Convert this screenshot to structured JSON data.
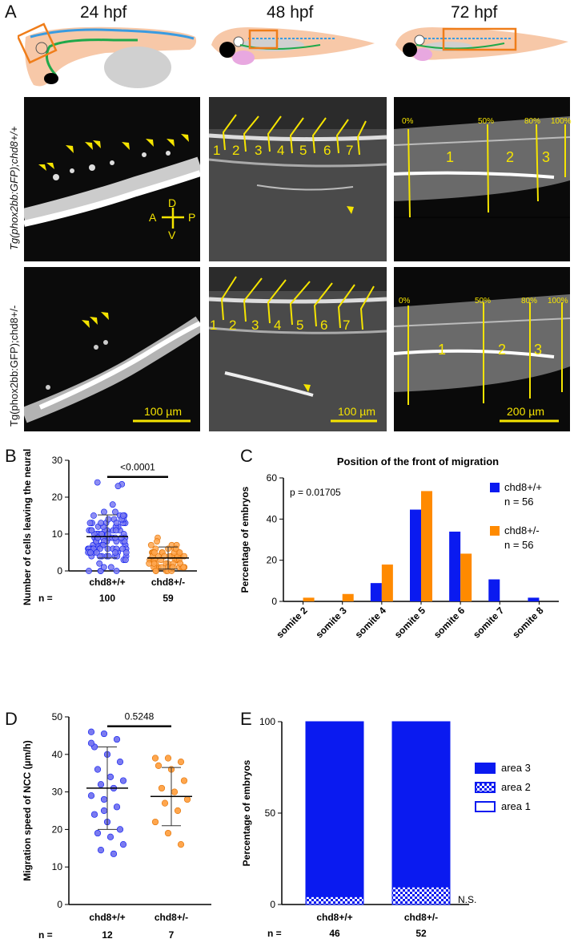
{
  "panel_letters": {
    "A": "A",
    "B": "B",
    "C": "C",
    "D": "D",
    "E": "E"
  },
  "panelA": {
    "stages": [
      "24  hpf",
      "48  hpf",
      "72  hpf"
    ],
    "row_labels": [
      "Tg(phox2bb:GFP);chd8+/+",
      "Tg(phox2bb:GFP);chd8+/-"
    ],
    "axes_compass": {
      "D": "D",
      "A": "A",
      "P": "P",
      "V": "V"
    },
    "somite_numbers": [
      "1",
      "2",
      "3",
      "4",
      "5",
      "6",
      "7"
    ],
    "trunk_percents": [
      "0%",
      "50%",
      "80%",
      "100%"
    ],
    "trunk_areas": [
      "1",
      "2",
      "3"
    ],
    "scale_bars": [
      "100 µm",
      "100 µm",
      "200 µm"
    ],
    "annotation_color": "#f5e400"
  },
  "colors": {
    "wt_blue": "#0a1af0",
    "het_orange": "#ff8a00",
    "wt_dot": "#7a7af0",
    "het_dot": "#ffa64d"
  },
  "chart_data": [
    {
      "panel": "B",
      "type": "scatter",
      "ylabel": "Number of cells leaving the neural tube",
      "ylim": [
        0,
        30
      ],
      "yticks": [
        "0",
        "10",
        "20",
        "30"
      ],
      "categories": [
        "chd8+/+",
        "chd8+/-"
      ],
      "n_label": "n =",
      "n": [
        "100",
        "59"
      ],
      "p_value": "<0.0001",
      "summary": [
        {
          "group": "chd8+/+",
          "mean": 9.3,
          "sd_low": 3.5,
          "sd_high": 15.2
        },
        {
          "group": "chd8+/-",
          "mean": 3.5,
          "sd_low": 0.5,
          "sd_high": 6.5
        }
      ]
    },
    {
      "panel": "C",
      "type": "bar",
      "title": "Position of the front of migration",
      "ylabel": "Percentage of embryos",
      "ylim": [
        0,
        60
      ],
      "yticks": [
        "0",
        "20",
        "40",
        "60"
      ],
      "p_value": "p = 0.01705",
      "categories": [
        "somite 2",
        "somite 3",
        "somite 4",
        "somite 5",
        "somite 6",
        "somite 7",
        "somite 8"
      ],
      "series": [
        {
          "name": "chd8+/+",
          "n": "n = 56",
          "values": [
            0,
            0,
            8.9,
            44.6,
            33.9,
            10.7,
            1.8
          ]
        },
        {
          "name": "chd8+/-",
          "n": "n = 56",
          "values": [
            1.8,
            3.6,
            17.9,
            53.6,
            23.2,
            0,
            0
          ]
        }
      ],
      "legend": "top-right"
    },
    {
      "panel": "D",
      "type": "scatter",
      "ylabel": "Migration speed of NCC (µm/h)",
      "ylim": [
        0,
        50
      ],
      "yticks": [
        "0",
        "10",
        "20",
        "30",
        "40",
        "50"
      ],
      "categories": [
        "chd8+/+",
        "chd8+/-"
      ],
      "n_label": "n =",
      "n": [
        "12",
        "7"
      ],
      "p_value": "0.5248",
      "summary": [
        {
          "group": "chd8+/+",
          "mean": 31,
          "sd_low": 20,
          "sd_high": 42
        },
        {
          "group": "chd8+/-",
          "mean": 28.8,
          "sd_low": 21,
          "sd_high": 36.5
        }
      ]
    },
    {
      "panel": "E",
      "type": "bar",
      "stacked": true,
      "ylabel": "Percentage of embryos",
      "ylim": [
        0,
        100
      ],
      "yticks": [
        "0",
        "50",
        "100"
      ],
      "categories": [
        "chd8+/+",
        "chd8+/-"
      ],
      "n_label": "n =",
      "n": [
        "46",
        "52"
      ],
      "series": [
        {
          "name": "area 1",
          "values": [
            0,
            0
          ]
        },
        {
          "name": "area 2",
          "values": [
            4.3,
            9.6
          ]
        },
        {
          "name": "area 3",
          "values": [
            95.7,
            90.4
          ]
        }
      ],
      "annotation": "N.S.",
      "legend": "right"
    }
  ]
}
